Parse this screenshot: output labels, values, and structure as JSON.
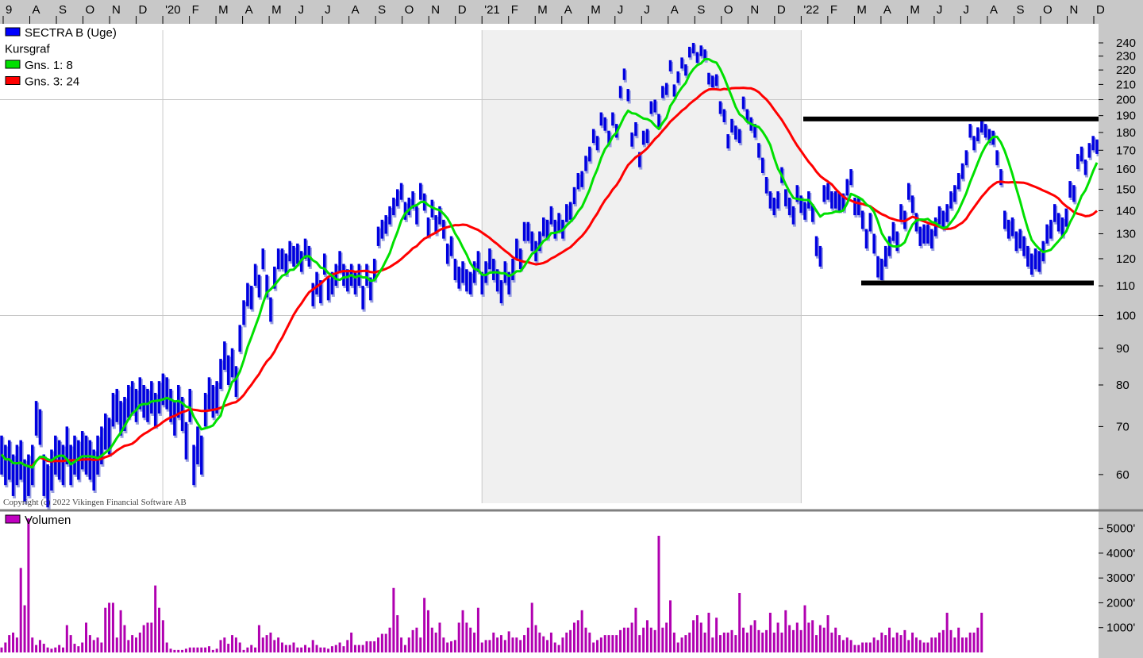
{
  "chart_data": [
    {
      "type": "bar",
      "title": "",
      "legend": [
        {
          "label": "SECTRA B (Uge)",
          "color": "#0000ff"
        },
        {
          "label": "Kursgraf",
          "color": ""
        },
        {
          "label": "Gns. 1: 8",
          "color": "#00e000"
        },
        {
          "label": "Gns. 3: 24",
          "color": "#ff0000"
        }
      ],
      "copyright": "Copyright (c) 2022 Vikingen Financial Software AB",
      "x_ticks": [
        "9",
        "A",
        "S",
        "O",
        "N",
        "D",
        "'20",
        "F",
        "M",
        "A",
        "M",
        "J",
        "J",
        "A",
        "S",
        "O",
        "N",
        "D",
        "'21",
        "F",
        "M",
        "A",
        "M",
        "J",
        "J",
        "A",
        "S",
        "O",
        "N",
        "D",
        "'22",
        "F",
        "M",
        "A",
        "M",
        "J",
        "J",
        "A",
        "S",
        "O",
        "N",
        "D"
      ],
      "year_dividers": [
        "'20",
        "'21",
        "'22"
      ],
      "y_axis": {
        "scale": "log",
        "range": [
          55,
          250
        ],
        "ticks": [
          240,
          230,
          220,
          210,
          200,
          190,
          180,
          170,
          160,
          150,
          140,
          130,
          120,
          110,
          100,
          90,
          80,
          70,
          60
        ]
      },
      "weekly_hilo": [
        [
          60,
          68
        ],
        [
          58,
          66
        ],
        [
          59,
          67
        ],
        [
          56,
          64
        ],
        [
          58,
          66
        ],
        [
          59,
          67
        ],
        [
          55,
          63
        ],
        [
          56,
          64
        ],
        [
          58,
          66
        ],
        [
          68,
          76
        ],
        [
          66,
          74
        ],
        [
          56,
          64
        ],
        [
          54,
          62
        ],
        [
          57,
          65
        ],
        [
          60,
          68
        ],
        [
          59,
          67
        ],
        [
          58,
          66
        ],
        [
          62,
          70
        ],
        [
          58,
          66
        ],
        [
          60,
          68
        ],
        [
          59,
          67
        ],
        [
          61,
          69
        ],
        [
          60,
          68
        ],
        [
          59,
          67
        ],
        [
          57,
          65
        ],
        [
          60,
          68
        ],
        [
          62,
          70
        ],
        [
          65,
          73
        ],
        [
          64,
          72
        ],
        [
          70,
          78
        ],
        [
          71,
          79
        ],
        [
          68,
          76
        ],
        [
          69,
          77
        ],
        [
          72,
          80
        ],
        [
          73,
          81
        ],
        [
          71,
          79
        ],
        [
          74,
          82
        ],
        [
          72,
          80
        ],
        [
          71,
          79
        ],
        [
          73,
          81
        ],
        [
          70,
          78
        ],
        [
          73,
          81
        ],
        [
          75,
          83
        ],
        [
          74,
          82
        ],
        [
          71,
          79
        ],
        [
          68,
          76
        ],
        [
          72,
          80
        ],
        [
          69,
          77
        ],
        [
          63,
          71
        ],
        [
          71,
          79
        ],
        [
          58,
          66
        ],
        [
          62,
          70
        ],
        [
          60,
          68
        ],
        [
          70,
          78
        ],
        [
          74,
          82
        ],
        [
          72,
          80
        ],
        [
          73,
          81
        ],
        [
          79,
          87
        ],
        [
          84,
          92
        ],
        [
          80,
          88
        ],
        [
          82,
          90
        ],
        [
          77,
          85
        ],
        [
          89,
          97
        ],
        [
          97,
          105
        ],
        [
          103,
          111
        ],
        [
          102,
          110
        ],
        [
          110,
          118
        ],
        [
          106,
          114
        ],
        [
          116,
          124
        ],
        [
          106,
          114
        ],
        [
          98,
          106
        ],
        [
          109,
          117
        ],
        [
          116,
          124
        ],
        [
          116,
          124
        ],
        [
          114,
          122
        ],
        [
          119,
          127
        ],
        [
          117,
          125
        ],
        [
          118,
          126
        ],
        [
          115,
          123
        ],
        [
          120,
          128
        ],
        [
          117,
          125
        ],
        [
          103,
          111
        ],
        [
          107,
          115
        ],
        [
          104,
          112
        ],
        [
          114,
          122
        ],
        [
          105,
          113
        ],
        [
          107,
          115
        ],
        [
          110,
          118
        ],
        [
          115,
          123
        ],
        [
          110,
          118
        ],
        [
          108,
          116
        ],
        [
          110,
          118
        ],
        [
          107,
          115
        ],
        [
          110,
          118
        ],
        [
          102,
          110
        ],
        [
          110,
          118
        ],
        [
          105,
          113
        ],
        [
          112,
          120
        ],
        [
          125,
          133
        ],
        [
          128,
          136
        ],
        [
          130,
          138
        ],
        [
          134,
          142
        ],
        [
          138,
          146
        ],
        [
          142,
          150
        ],
        [
          145,
          153
        ],
        [
          136,
          144
        ],
        [
          138,
          146
        ],
        [
          141,
          149
        ],
        [
          134,
          142
        ],
        [
          145,
          153
        ],
        [
          140,
          148
        ],
        [
          129,
          137
        ],
        [
          137,
          145
        ],
        [
          130,
          138
        ],
        [
          134,
          142
        ],
        [
          128,
          136
        ],
        [
          118,
          126
        ],
        [
          121,
          129
        ],
        [
          112,
          120
        ],
        [
          109,
          117
        ],
        [
          111,
          119
        ],
        [
          108,
          116
        ],
        [
          107,
          115
        ],
        [
          111,
          119
        ],
        [
          115,
          123
        ],
        [
          107,
          115
        ],
        [
          111,
          119
        ],
        [
          116,
          124
        ],
        [
          112,
          120
        ],
        [
          108,
          116
        ],
        [
          104,
          112
        ],
        [
          111,
          119
        ],
        [
          107,
          115
        ],
        [
          112,
          120
        ],
        [
          120,
          128
        ],
        [
          116,
          124
        ],
        [
          127,
          135
        ],
        [
          127,
          135
        ],
        [
          123,
          131
        ],
        [
          119,
          127
        ],
        [
          123,
          131
        ],
        [
          129,
          137
        ],
        [
          128,
          136
        ],
        [
          134,
          142
        ],
        [
          128,
          136
        ],
        [
          131,
          139
        ],
        [
          128,
          136
        ],
        [
          135,
          143
        ],
        [
          136,
          144
        ],
        [
          143,
          151
        ],
        [
          150,
          158
        ],
        [
          151,
          159
        ],
        [
          159,
          167
        ],
        [
          164,
          172
        ],
        [
          174,
          182
        ],
        [
          170,
          178
        ],
        [
          184,
          192
        ],
        [
          181,
          189
        ],
        [
          173,
          181
        ],
        [
          184,
          192
        ],
        [
          177,
          185
        ],
        [
          201,
          209
        ],
        [
          213,
          221
        ],
        [
          199,
          207
        ],
        [
          172,
          180
        ],
        [
          178,
          186
        ],
        [
          161,
          169
        ],
        [
          173,
          181
        ],
        [
          174,
          182
        ],
        [
          191,
          199
        ],
        [
          192,
          200
        ],
        [
          183,
          191
        ],
        [
          201,
          209
        ],
        [
          203,
          211
        ],
        [
          219,
          227
        ],
        [
          202,
          210
        ],
        [
          211,
          219
        ],
        [
          221,
          229
        ],
        [
          216,
          224
        ],
        [
          229,
          237
        ],
        [
          232,
          240
        ],
        [
          225,
          233
        ],
        [
          230,
          238
        ],
        [
          227,
          235
        ],
        [
          210,
          218
        ],
        [
          208,
          216
        ],
        [
          209,
          217
        ],
        [
          191,
          199
        ],
        [
          186,
          194
        ],
        [
          171,
          179
        ],
        [
          180,
          188
        ],
        [
          176,
          184
        ],
        [
          174,
          182
        ],
        [
          194,
          202
        ],
        [
          186,
          194
        ],
        [
          181,
          189
        ],
        [
          177,
          185
        ],
        [
          166,
          174
        ],
        [
          158,
          166
        ],
        [
          148,
          156
        ],
        [
          141,
          149
        ],
        [
          138,
          146
        ],
        [
          141,
          149
        ],
        [
          153,
          161
        ],
        [
          142,
          150
        ],
        [
          138,
          146
        ],
        [
          134,
          142
        ],
        [
          144,
          152
        ],
        [
          139,
          147
        ],
        [
          136,
          144
        ],
        [
          141,
          149
        ],
        [
          135,
          143
        ],
        [
          121,
          129
        ],
        [
          117,
          125
        ],
        [
          144,
          152
        ],
        [
          145,
          153
        ],
        [
          141,
          149
        ],
        [
          141,
          149
        ],
        [
          140,
          148
        ],
        [
          140,
          148
        ],
        [
          147,
          155
        ],
        [
          152,
          160
        ],
        [
          138,
          146
        ],
        [
          138,
          146
        ],
        [
          132,
          140
        ],
        [
          124,
          132
        ],
        [
          131,
          139
        ],
        [
          122,
          130
        ],
        [
          113,
          121
        ],
        [
          112,
          120
        ],
        [
          117,
          125
        ],
        [
          121,
          129
        ],
        [
          127,
          135
        ],
        [
          123,
          131
        ],
        [
          135,
          143
        ],
        [
          132,
          140
        ],
        [
          145,
          153
        ],
        [
          139,
          147
        ],
        [
          131,
          139
        ],
        [
          125,
          133
        ],
        [
          126,
          134
        ],
        [
          126,
          134
        ],
        [
          124,
          132
        ],
        [
          129,
          137
        ],
        [
          134,
          142
        ],
        [
          132,
          140
        ],
        [
          135,
          143
        ],
        [
          141,
          149
        ],
        [
          144,
          152
        ],
        [
          150,
          158
        ],
        [
          155,
          163
        ],
        [
          162,
          170
        ],
        [
          177,
          185
        ],
        [
          170,
          178
        ],
        [
          175,
          183
        ],
        [
          180,
          188
        ],
        [
          177,
          185
        ],
        [
          174,
          182
        ],
        [
          173,
          181
        ],
        [
          162,
          170
        ],
        [
          152,
          160
        ],
        [
          132,
          140
        ],
        [
          128,
          136
        ],
        [
          129,
          137
        ],
        [
          123,
          131
        ],
        [
          124,
          132
        ],
        [
          121,
          129
        ],
        [
          117,
          125
        ],
        [
          114,
          122
        ],
        [
          116,
          124
        ],
        [
          115,
          123
        ],
        [
          119,
          127
        ],
        [
          126,
          134
        ],
        [
          128,
          136
        ],
        [
          135,
          143
        ],
        [
          131,
          139
        ],
        [
          129,
          137
        ],
        [
          133,
          141
        ],
        [
          146,
          154
        ],
        [
          144,
          152
        ],
        [
          160,
          168
        ],
        [
          164,
          172
        ],
        [
          157,
          165
        ],
        [
          166,
          174
        ],
        [
          170,
          178
        ],
        [
          168,
          176
        ]
      ],
      "ma_short": {
        "name": "Gns. 1: 8",
        "color": "#00e000",
        "period": 8
      },
      "ma_long": {
        "name": "Gns. 3: 24",
        "color": "#ff0000",
        "period": 24
      },
      "resistance_level": 188,
      "support_level": 111
    },
    {
      "type": "bar",
      "title": "",
      "legend": [
        {
          "label": "Volumen",
          "color": "#c000c0"
        }
      ],
      "y_axis": {
        "ticks": [
          "5000'",
          "4000'",
          "3000'",
          "2000'",
          "1000'"
        ],
        "range": [
          0,
          5500
        ]
      },
      "unit": "thousands",
      "values": [
        200,
        400,
        700,
        800,
        600,
        3400,
        1900,
        5400,
        600,
        300,
        500,
        350,
        200,
        150,
        200,
        300,
        200,
        1100,
        700,
        350,
        250,
        400,
        1200,
        700,
        500,
        600,
        400,
        1800,
        2000,
        2000,
        600,
        1700,
        1100,
        500,
        700,
        600,
        800,
        1100,
        1200,
        1200,
        2700,
        1800,
        1300,
        400,
        150,
        100,
        100,
        100,
        150,
        200,
        200,
        200,
        200,
        200,
        250,
        100,
        150,
        500,
        600,
        350,
        700,
        600,
        400,
        100,
        200,
        300,
        200,
        1100,
        600,
        700,
        800,
        500,
        600,
        400,
        300,
        300,
        400,
        200,
        200,
        300,
        200,
        500,
        300,
        200,
        200,
        150,
        250,
        300,
        400,
        250,
        500,
        800,
        300,
        300,
        300,
        450,
        450,
        450,
        600,
        750,
        750,
        1000,
        2600,
        1500,
        600,
        300,
        600,
        900,
        1000,
        600,
        2200,
        1700,
        1000,
        800,
        1200,
        600,
        400,
        450,
        500,
        1200,
        1700,
        1200,
        1000,
        800,
        1800,
        400,
        500,
        500,
        800,
        600,
        700,
        500,
        850,
        600,
        600,
        500,
        700,
        1000,
        2000,
        1100,
        800,
        650,
        500,
        800,
        400,
        300,
        600,
        800,
        900,
        1200,
        1300,
        1700,
        1000,
        800,
        400,
        500,
        600,
        700,
        700,
        700,
        700,
        900,
        1000,
        1000,
        1200,
        1800,
        700,
        1000,
        1300,
        1000,
        900,
        4700,
        1000,
        1200,
        2100,
        800,
        400,
        600,
        700,
        800,
        1300,
        1500,
        1200,
        800,
        1600,
        600,
        1400,
        700,
        800,
        800,
        900,
        700,
        2400,
        1000,
        800,
        1100,
        1300,
        900,
        800,
        900,
        1600,
        800,
        1200,
        800,
        1700,
        1100,
        900,
        1200,
        900,
        1900,
        1200,
        1300,
        700,
        1100,
        1000,
        1500,
        800,
        1000,
        700,
        500,
        600,
        500,
        300,
        300,
        400,
        400,
        400,
        600,
        500,
        800,
        700,
        1000,
        600,
        800,
        700,
        900,
        500,
        800,
        600,
        500,
        400,
        400,
        600,
        600,
        800,
        900,
        1600,
        900,
        600,
        1000,
        600,
        600,
        800,
        800,
        1000,
        1600
      ]
    }
  ]
}
